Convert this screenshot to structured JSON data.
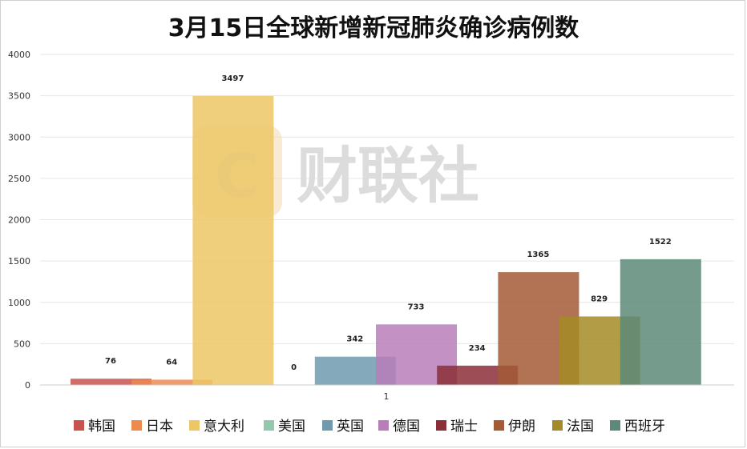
{
  "chart_data": {
    "type": "bar",
    "title": "3月15日全球新增新冠肺炎确诊病例数",
    "xlabel": "",
    "ylabel": "",
    "categories": [
      "1"
    ],
    "ylim": [
      0,
      4000
    ],
    "yticks": [
      0,
      500,
      1000,
      1500,
      2000,
      2500,
      3000,
      3500,
      4000
    ],
    "grid": true,
    "legend_position": "bottom",
    "series": [
      {
        "name": "韩国",
        "values": [
          76
        ],
        "color": "#c9524e"
      },
      {
        "name": "日本",
        "values": [
          64
        ],
        "color": "#ef8a4e"
      },
      {
        "name": "意大利",
        "values": [
          3497
        ],
        "color": "#edc765"
      },
      {
        "name": "美国",
        "values": [
          0
        ],
        "color": "#92c9ac"
      },
      {
        "name": "英国",
        "values": [
          342
        ],
        "color": "#6f9aae"
      },
      {
        "name": "德国",
        "values": [
          733
        ],
        "color": "#b97eb9"
      },
      {
        "name": "瑞士",
        "values": [
          234
        ],
        "color": "#8c2e38"
      },
      {
        "name": "伊朗",
        "values": [
          1365
        ],
        "color": "#a35a35"
      },
      {
        "name": "法国",
        "values": [
          829
        ],
        "color": "#a58b25"
      },
      {
        "name": "西班牙",
        "values": [
          1522
        ],
        "color": "#5c8a78"
      }
    ]
  },
  "watermark": {
    "text": "财联社",
    "logo_letter": "C"
  }
}
